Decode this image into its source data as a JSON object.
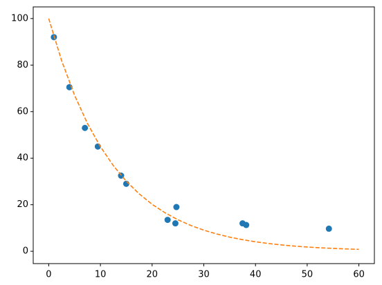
{
  "chart_data": {
    "type": "scatter",
    "xlim": [
      -3,
      63
    ],
    "ylim": [
      -5.3,
      105
    ],
    "xticks": [
      0,
      10,
      20,
      30,
      40,
      50,
      60
    ],
    "yticks": [
      0,
      20,
      40,
      60,
      80,
      100
    ],
    "series": [
      {
        "type": "scatter",
        "color": "#1f77b4",
        "x": [
          1,
          4,
          7,
          9.5,
          14,
          15,
          23,
          24.5,
          24.7,
          37.5,
          38.2,
          54.2
        ],
        "values": [
          92,
          70.5,
          53,
          45,
          32.5,
          29,
          13.5,
          12,
          19,
          12,
          11.3,
          9.7
        ]
      },
      {
        "type": "line",
        "color": "#ff7f0e",
        "dashed": true,
        "x": [
          0,
          2.5,
          5,
          7.5,
          10,
          12.5,
          15,
          17.5,
          20,
          22.5,
          25,
          27.5,
          30,
          32.5,
          35,
          37.5,
          40,
          42.5,
          45,
          47.5,
          50,
          52.5,
          55,
          57.5,
          60
        ],
        "values": [
          100,
          81.87,
          67.03,
          54.88,
          44.93,
          36.79,
          30.12,
          24.66,
          20.19,
          16.53,
          13.53,
          11.08,
          9.07,
          7.43,
          6.08,
          4.98,
          4.08,
          3.34,
          2.73,
          2.24,
          1.83,
          1.5,
          1.23,
          1.01,
          0.82
        ]
      }
    ]
  }
}
